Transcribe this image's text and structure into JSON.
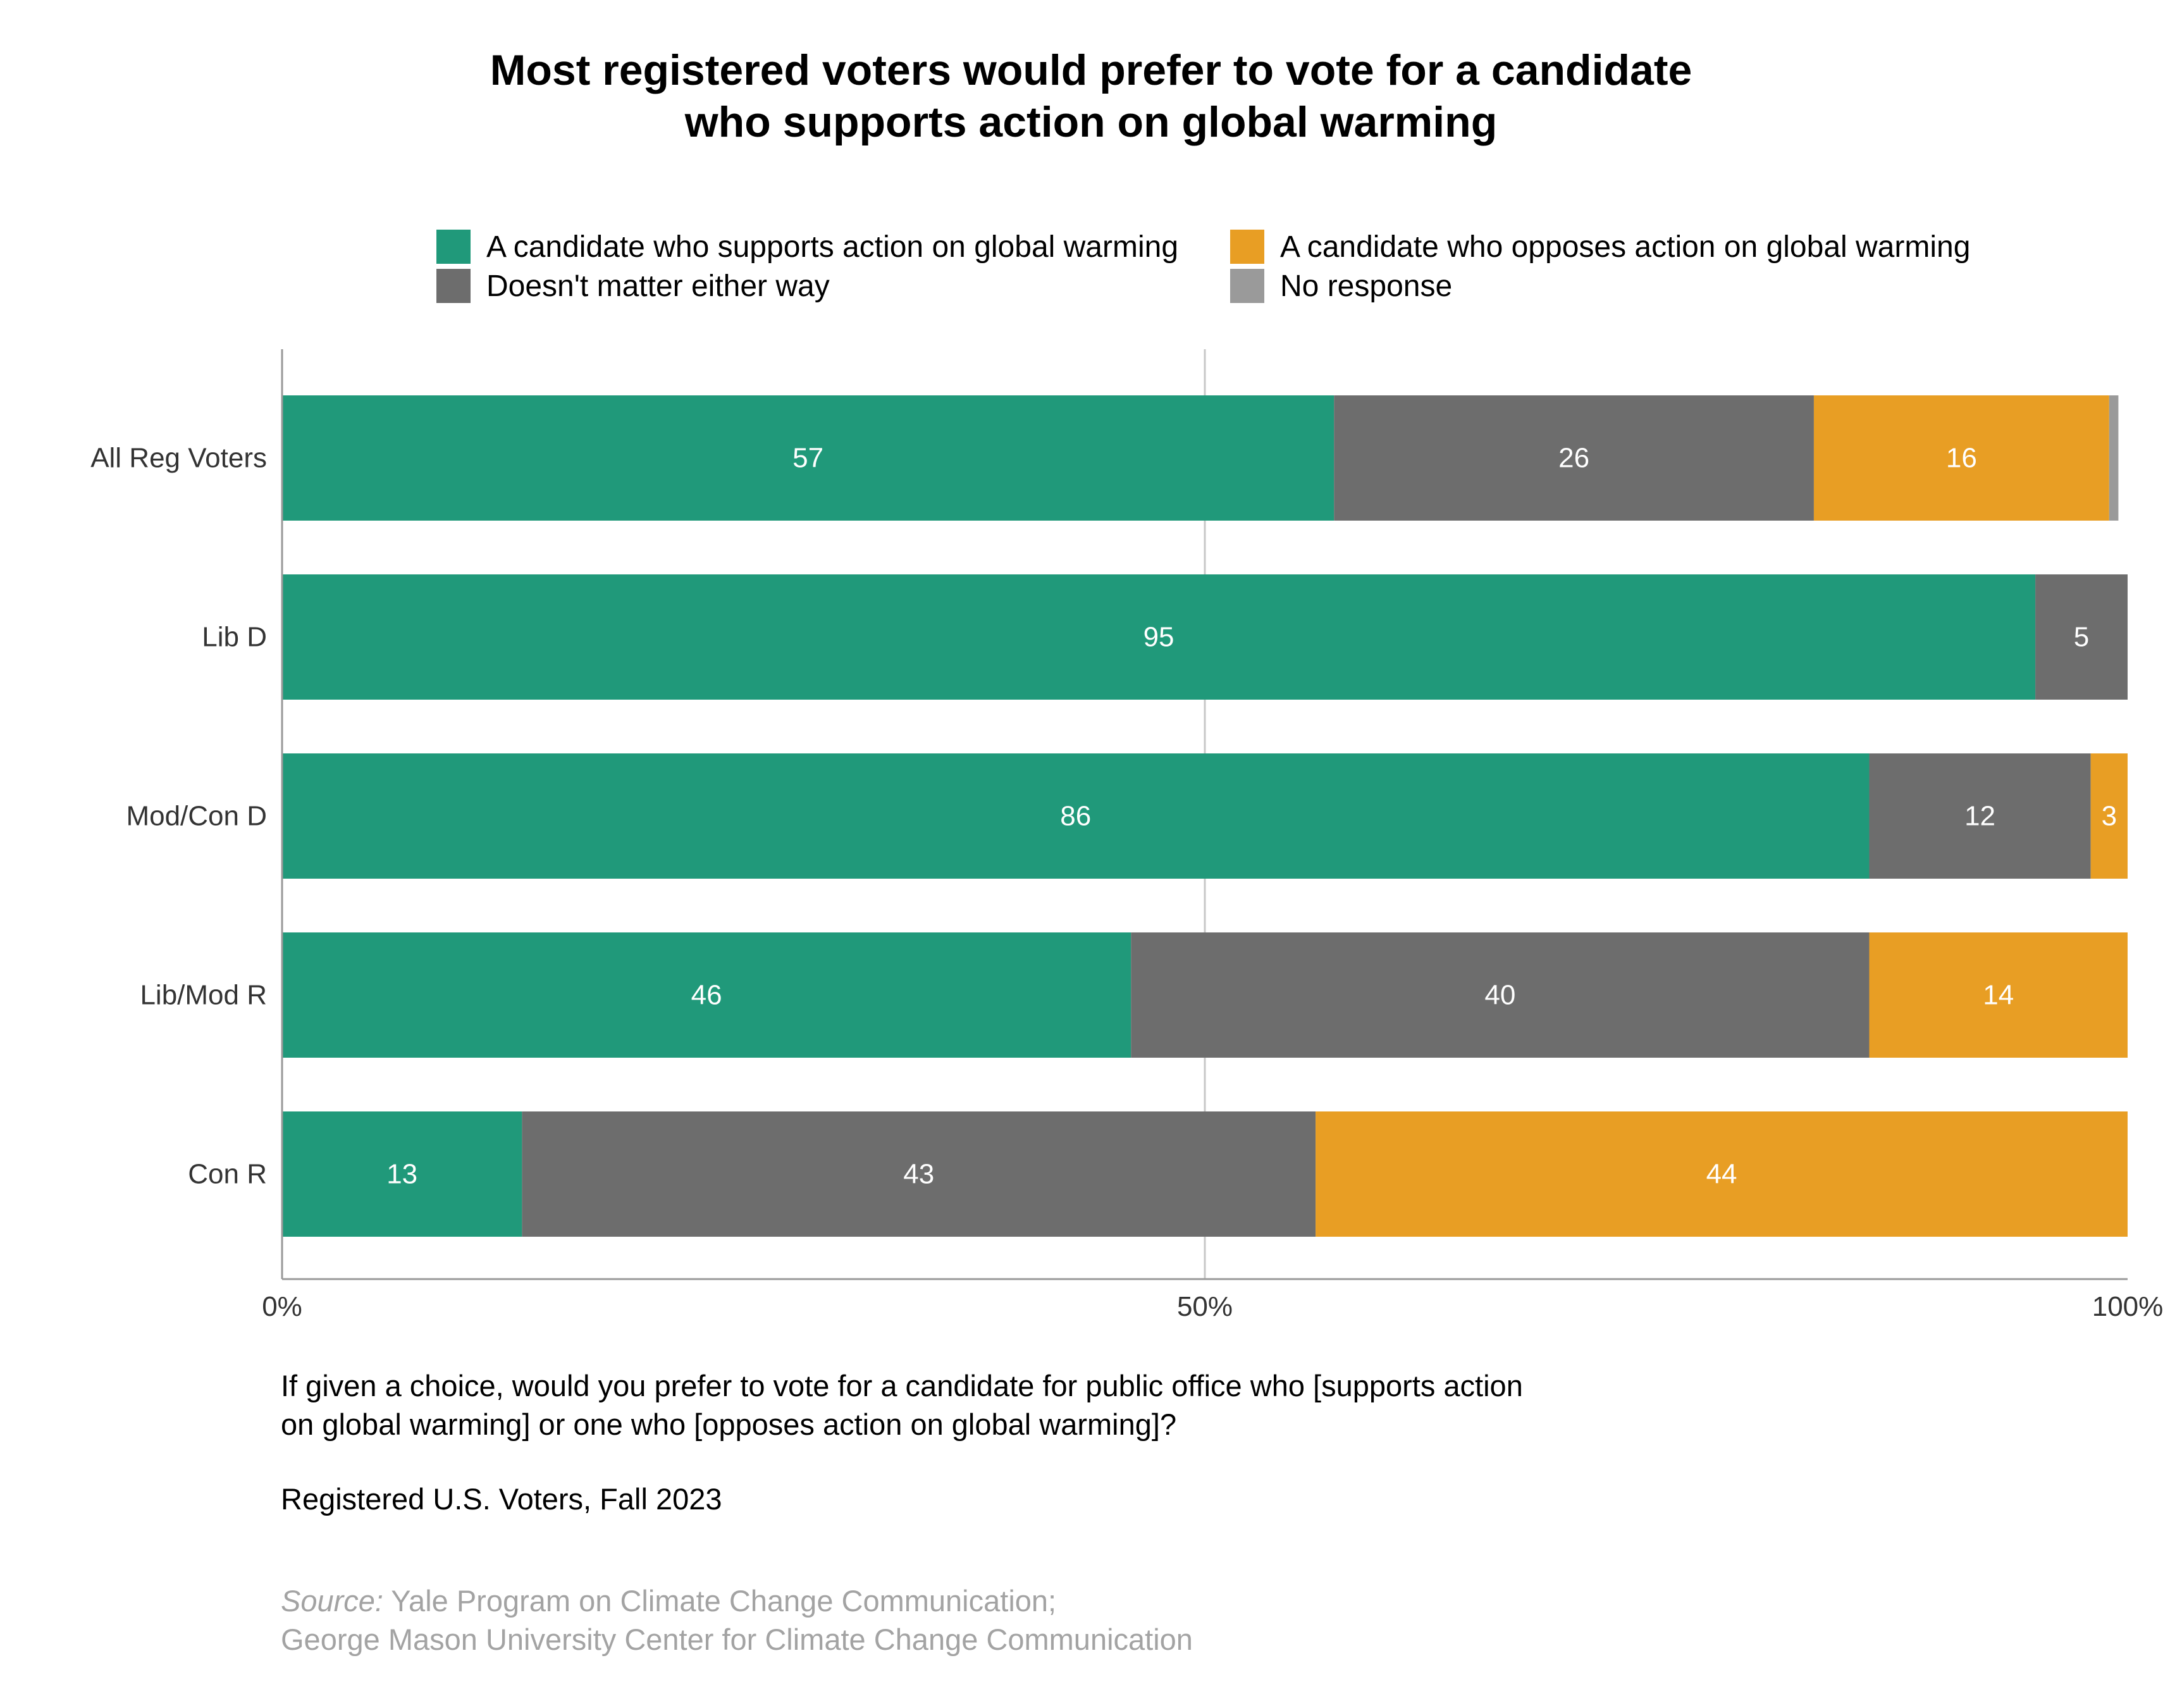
{
  "colors": {
    "supports": "#20997A",
    "doesnt_matter": "#6D6D6D",
    "opposes": "#E89E24",
    "no_response": "#9A9A9A",
    "gridline": "#c8c8c8",
    "axis": "#9a9a9a",
    "tick_text": "#333333",
    "source_text": "#a3a3a3"
  },
  "chart_data": {
    "type": "bar",
    "orientation": "horizontal",
    "stacked": true,
    "title": [
      "Most registered voters would prefer to vote for a candidate",
      "who supports action on global warming"
    ],
    "categories": [
      "All Reg Voters",
      "Lib D",
      "Mod/Con D",
      "Lib/Mod R",
      "Con R"
    ],
    "series": [
      {
        "name": "A candidate who supports action on global warming",
        "key": "supports",
        "values": [
          57,
          95,
          86,
          46,
          13
        ]
      },
      {
        "name": "Doesn't matter either way",
        "key": "doesnt_matter",
        "values": [
          26,
          5,
          12,
          40,
          43
        ]
      },
      {
        "name": "A candidate who opposes action on global warming",
        "key": "opposes",
        "values": [
          16,
          0,
          3,
          14,
          44
        ]
      },
      {
        "name": "No response",
        "key": "no_response",
        "values": [
          0.5,
          0,
          0,
          0,
          0
        ]
      }
    ],
    "data_labels": [
      [
        "57",
        "26",
        "16",
        ""
      ],
      [
        "95",
        "5",
        "",
        ""
      ],
      [
        "86",
        "12",
        "3",
        ""
      ],
      [
        "46",
        "40",
        "14",
        ""
      ],
      [
        "13",
        "43",
        "44",
        ""
      ]
    ],
    "xlim": [
      0,
      100
    ],
    "xticks": [
      {
        "value": 0,
        "label": "0%"
      },
      {
        "value": 50,
        "label": "50%"
      },
      {
        "value": 100,
        "label": "100%"
      }
    ],
    "grid": "vertical at 50%",
    "legend_position": "top"
  },
  "notes": {
    "question": [
      "If given a choice, would you prefer to vote for a candidate for public office who [supports action",
      "on global warming] or one who [opposes action on global warming]?"
    ],
    "population": "Registered U.S. Voters, Fall 2023",
    "source_label": "Source:",
    "source_lines": [
      " Yale Program on Climate Change Communication;",
      "George Mason University Center for Climate Change Communication"
    ]
  }
}
